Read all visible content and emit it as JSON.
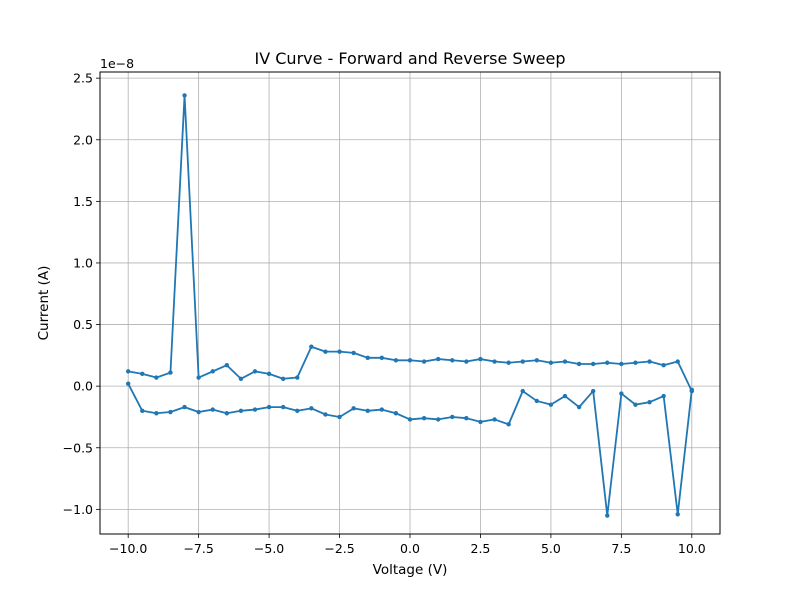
{
  "chart_data": {
    "type": "line",
    "title": "IV Curve - Forward and Reverse Sweep",
    "xlabel": "Voltage (V)",
    "ylabel": "Current (A)",
    "y_offset_label": "1e−8",
    "y_scale_exponent": -8,
    "xlim": [
      -11.0,
      11.0
    ],
    "ylim": [
      -1.2e-08,
      2.55e-08
    ],
    "x_ticks": [
      -10.0,
      -7.5,
      -5.0,
      -2.5,
      0.0,
      2.5,
      5.0,
      7.5,
      10.0
    ],
    "x_tick_labels": [
      "−10.0",
      "−7.5",
      "−5.0",
      "−2.5",
      "0.0",
      "2.5",
      "5.0",
      "7.5",
      "10.0"
    ],
    "y_ticks": [
      -1e-08,
      -5e-09,
      0.0,
      5e-09,
      1e-08,
      1.5e-08,
      2e-08,
      2.5e-08
    ],
    "y_tick_labels": [
      "−1.0",
      "−0.5",
      "0.0",
      "0.5",
      "1.0",
      "1.5",
      "2.0",
      "2.5"
    ],
    "grid": true,
    "line_color": "#1f77b4",
    "series": [
      {
        "x": [
          -10.0,
          -9.5,
          -9.0,
          -8.5,
          -8.0,
          -7.5,
          -7.0,
          -6.5,
          -6.0,
          -5.5,
          -5.0,
          -4.5,
          -4.0,
          -3.5,
          -3.0,
          -2.5,
          -2.0,
          -1.5,
          -1.0,
          -0.5,
          0.0,
          0.5,
          1.0,
          1.5,
          2.0,
          2.5,
          3.0,
          3.5,
          4.0,
          4.5,
          5.0,
          5.5,
          6.0,
          6.5,
          7.0,
          7.5,
          8.0,
          8.5,
          9.0,
          9.5,
          10.0,
          10.0,
          9.5,
          9.0,
          8.5,
          8.0,
          7.5,
          7.0,
          6.5,
          6.0,
          5.5,
          5.0,
          4.5,
          4.0,
          3.5,
          3.0,
          2.5,
          2.0,
          1.5,
          1.0,
          0.5,
          0.0,
          -0.5,
          -1.0,
          -1.5,
          -2.0,
          -2.5,
          -3.0,
          -3.5,
          -4.0,
          -4.5,
          -5.0,
          -5.5,
          -6.0,
          -6.5,
          -7.0,
          -7.5,
          -8.0,
          -8.5,
          -9.0,
          -9.5,
          -10.0
        ],
        "y": [
          2e-10,
          -2e-09,
          -2.2e-09,
          -2.1e-09,
          -1.7e-09,
          -2.1e-09,
          -1.9e-09,
          -2.2e-09,
          -2e-09,
          -1.9e-09,
          -1.7e-09,
          -1.7e-09,
          -2e-09,
          -1.8e-09,
          -2.3e-09,
          -2.5e-09,
          -1.8e-09,
          -2e-09,
          -1.9e-09,
          -2.2e-09,
          -2.7e-09,
          -2.6e-09,
          -2.7e-09,
          -2.5e-09,
          -2.6e-09,
          -2.9e-09,
          -2.7e-09,
          -3.1e-09,
          -4e-10,
          -1.2e-09,
          -1.5e-09,
          -8e-10,
          -1.7e-09,
          -4e-10,
          -1.05e-08,
          -6e-10,
          -1.5e-09,
          -1.3e-09,
          -8e-10,
          -1.04e-08,
          -3e-10,
          -4e-10,
          2e-09,
          1.7e-09,
          2e-09,
          1.9e-09,
          1.8e-09,
          1.9e-09,
          1.8e-09,
          1.8e-09,
          2e-09,
          1.9e-09,
          2.1e-09,
          2e-09,
          1.9e-09,
          2e-09,
          2.2e-09,
          2e-09,
          2.1e-09,
          2.2e-09,
          2e-09,
          2.1e-09,
          2.1e-09,
          2.3e-09,
          2.3e-09,
          2.7e-09,
          2.8e-09,
          2.8e-09,
          3.2e-09,
          7e-10,
          6e-10,
          1e-09,
          1.2e-09,
          6e-10,
          1.7e-09,
          1.2e-09,
          7e-10,
          2.36e-08,
          1.1e-09,
          7e-10,
          1e-09,
          1.2e-09
        ]
      }
    ]
  }
}
